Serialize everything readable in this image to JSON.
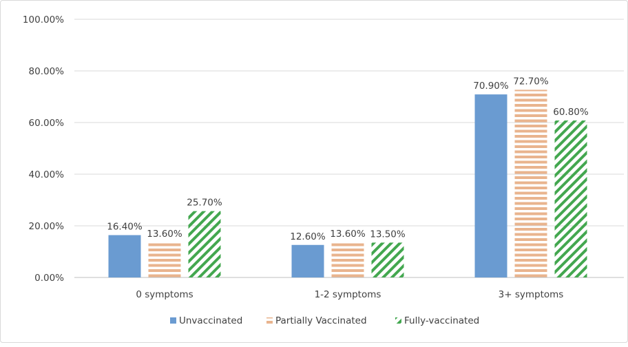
{
  "chart_data": {
    "type": "bar",
    "categories": [
      "0 symptoms",
      "1-2 symptoms",
      "3+ symptoms"
    ],
    "series": [
      {
        "name": "Unvaccinated",
        "values": [
          16.4,
          12.6,
          70.9
        ],
        "labels": [
          "16.40%",
          "12.60%",
          "70.90%"
        ],
        "color": "#6a9bd1",
        "pattern": "solid"
      },
      {
        "name": "Partially Vaccinated",
        "values": [
          13.6,
          13.6,
          72.7
        ],
        "labels": [
          "13.60%",
          "13.60%",
          "72.70%"
        ],
        "color": "#e9b48e",
        "pattern": "horizontal-stripes"
      },
      {
        "name": "Fully-vaccinated",
        "values": [
          25.7,
          13.5,
          60.8
        ],
        "labels": [
          "25.70%",
          "13.50%",
          "60.80%"
        ],
        "color": "#43a74f",
        "pattern": "diagonal-stripes"
      }
    ],
    "yticks": [
      "0.00%",
      "20.00%",
      "40.00%",
      "60.00%",
      "80.00%",
      "100.00%"
    ],
    "ylim": [
      0,
      100
    ],
    "grid": true,
    "legend": "bottom",
    "title": "",
    "xlabel": "",
    "ylabel": ""
  }
}
